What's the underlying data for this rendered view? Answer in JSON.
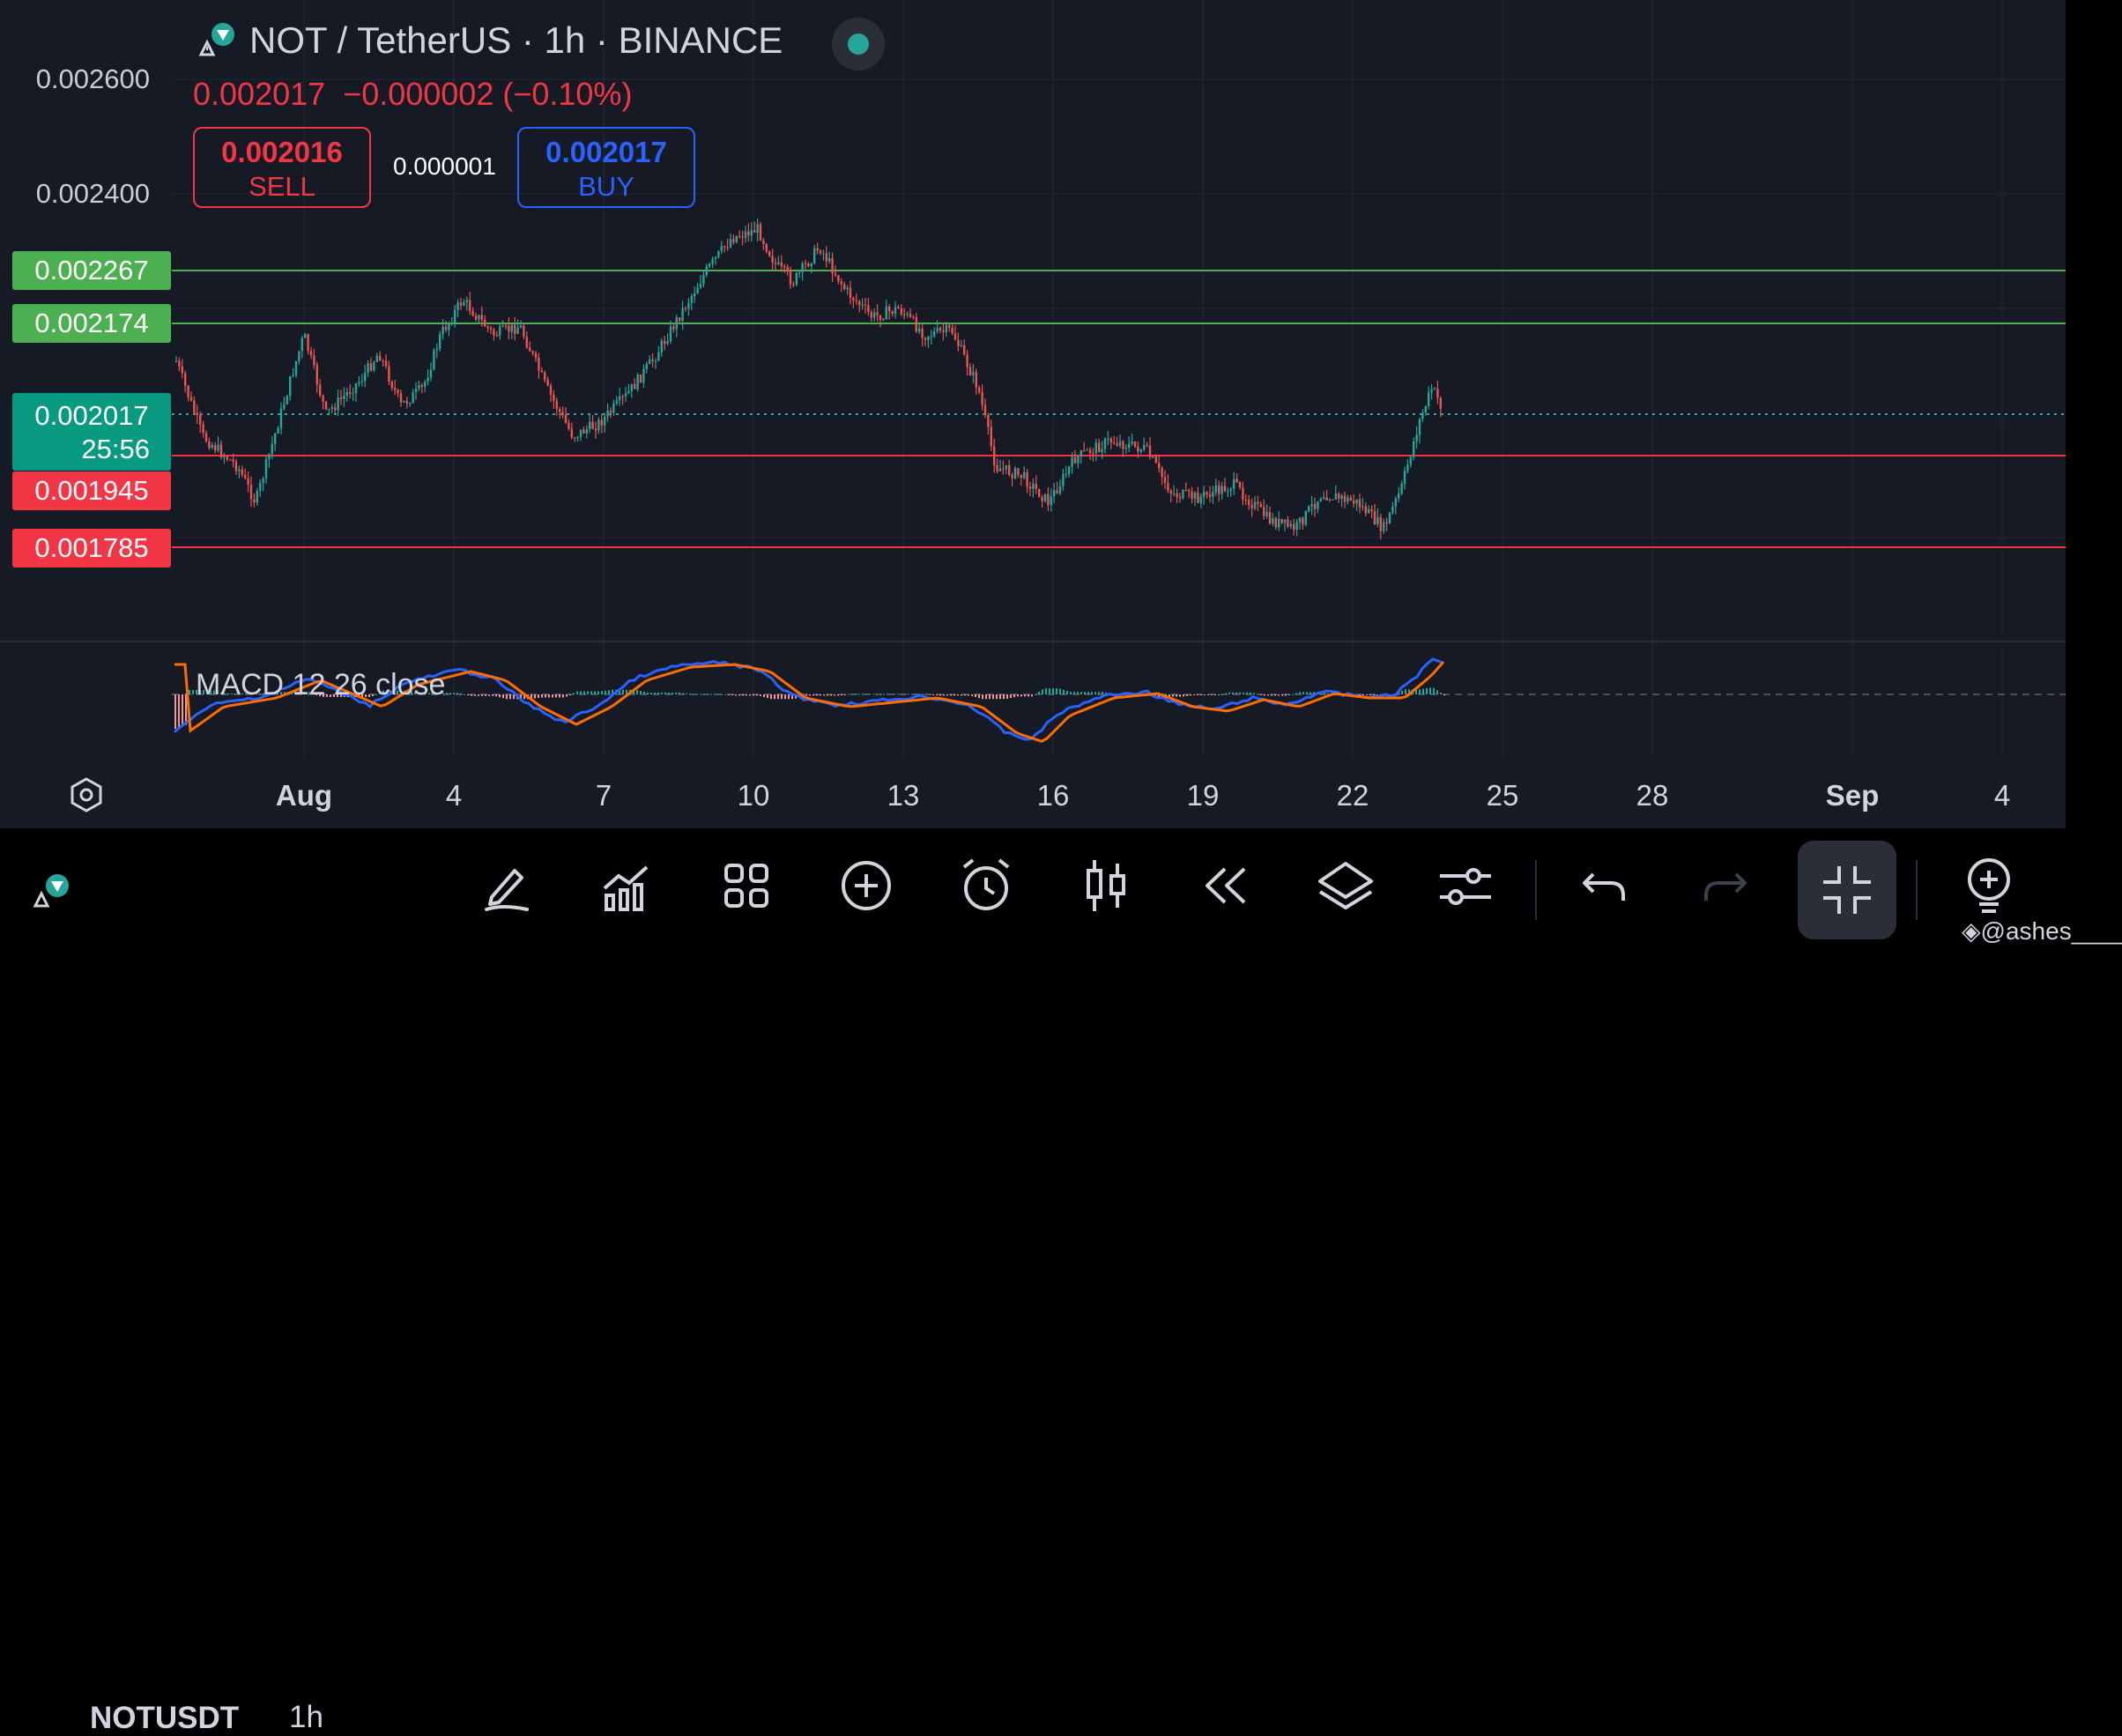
{
  "header": {
    "title": "NOT / TetherUS · 1h · BINANCE",
    "ohlc_price": "0.002017",
    "ohlc_change": "−0.000002 (−0.10%)",
    "sell_price": "0.002016",
    "sell_label": "SELL",
    "spread": "0.000001",
    "buy_price": "0.002017",
    "buy_label": "BUY"
  },
  "price_axis": {
    "labels": [
      "0.002600",
      "0.002400"
    ],
    "levels": [
      {
        "value": "0.002267",
        "color": "#4caf50"
      },
      {
        "value": "0.002174",
        "color": "#4caf50"
      },
      {
        "value": "0.001945",
        "color": "#f23645"
      },
      {
        "value": "0.001785",
        "color": "#f23645"
      }
    ],
    "current_price": "0.002017",
    "countdown": "25:56"
  },
  "indicator": {
    "macd_label": "MACD 12 26 close",
    "macd_color": "#2962ff",
    "signal_color": "#ff6d00"
  },
  "time_axis": {
    "labels": [
      "Aug",
      "4",
      "7",
      "10",
      "13",
      "16",
      "19",
      "22",
      "25",
      "28",
      "Sep",
      "4"
    ]
  },
  "bottom_bar": {
    "symbol": "NOTUSDT",
    "interval": "1h",
    "icons": [
      "pencil-icon",
      "indicators-icon",
      "grid-icon",
      "plus-circle-icon",
      "alarm-icon",
      "candles-icon",
      "replay-icon",
      "layers-icon",
      "settings-sliders-icon",
      "undo-icon",
      "redo-icon",
      "collapse-icon",
      "idea-bulb-icon"
    ]
  },
  "watermark": "@ashes____",
  "colors": {
    "background": "#161a25",
    "up": "#26a69a",
    "down": "#ef5350",
    "sell": "#f23645",
    "buy": "#2962ff",
    "green_level": "#4caf50",
    "red_level": "#f23645"
  }
}
